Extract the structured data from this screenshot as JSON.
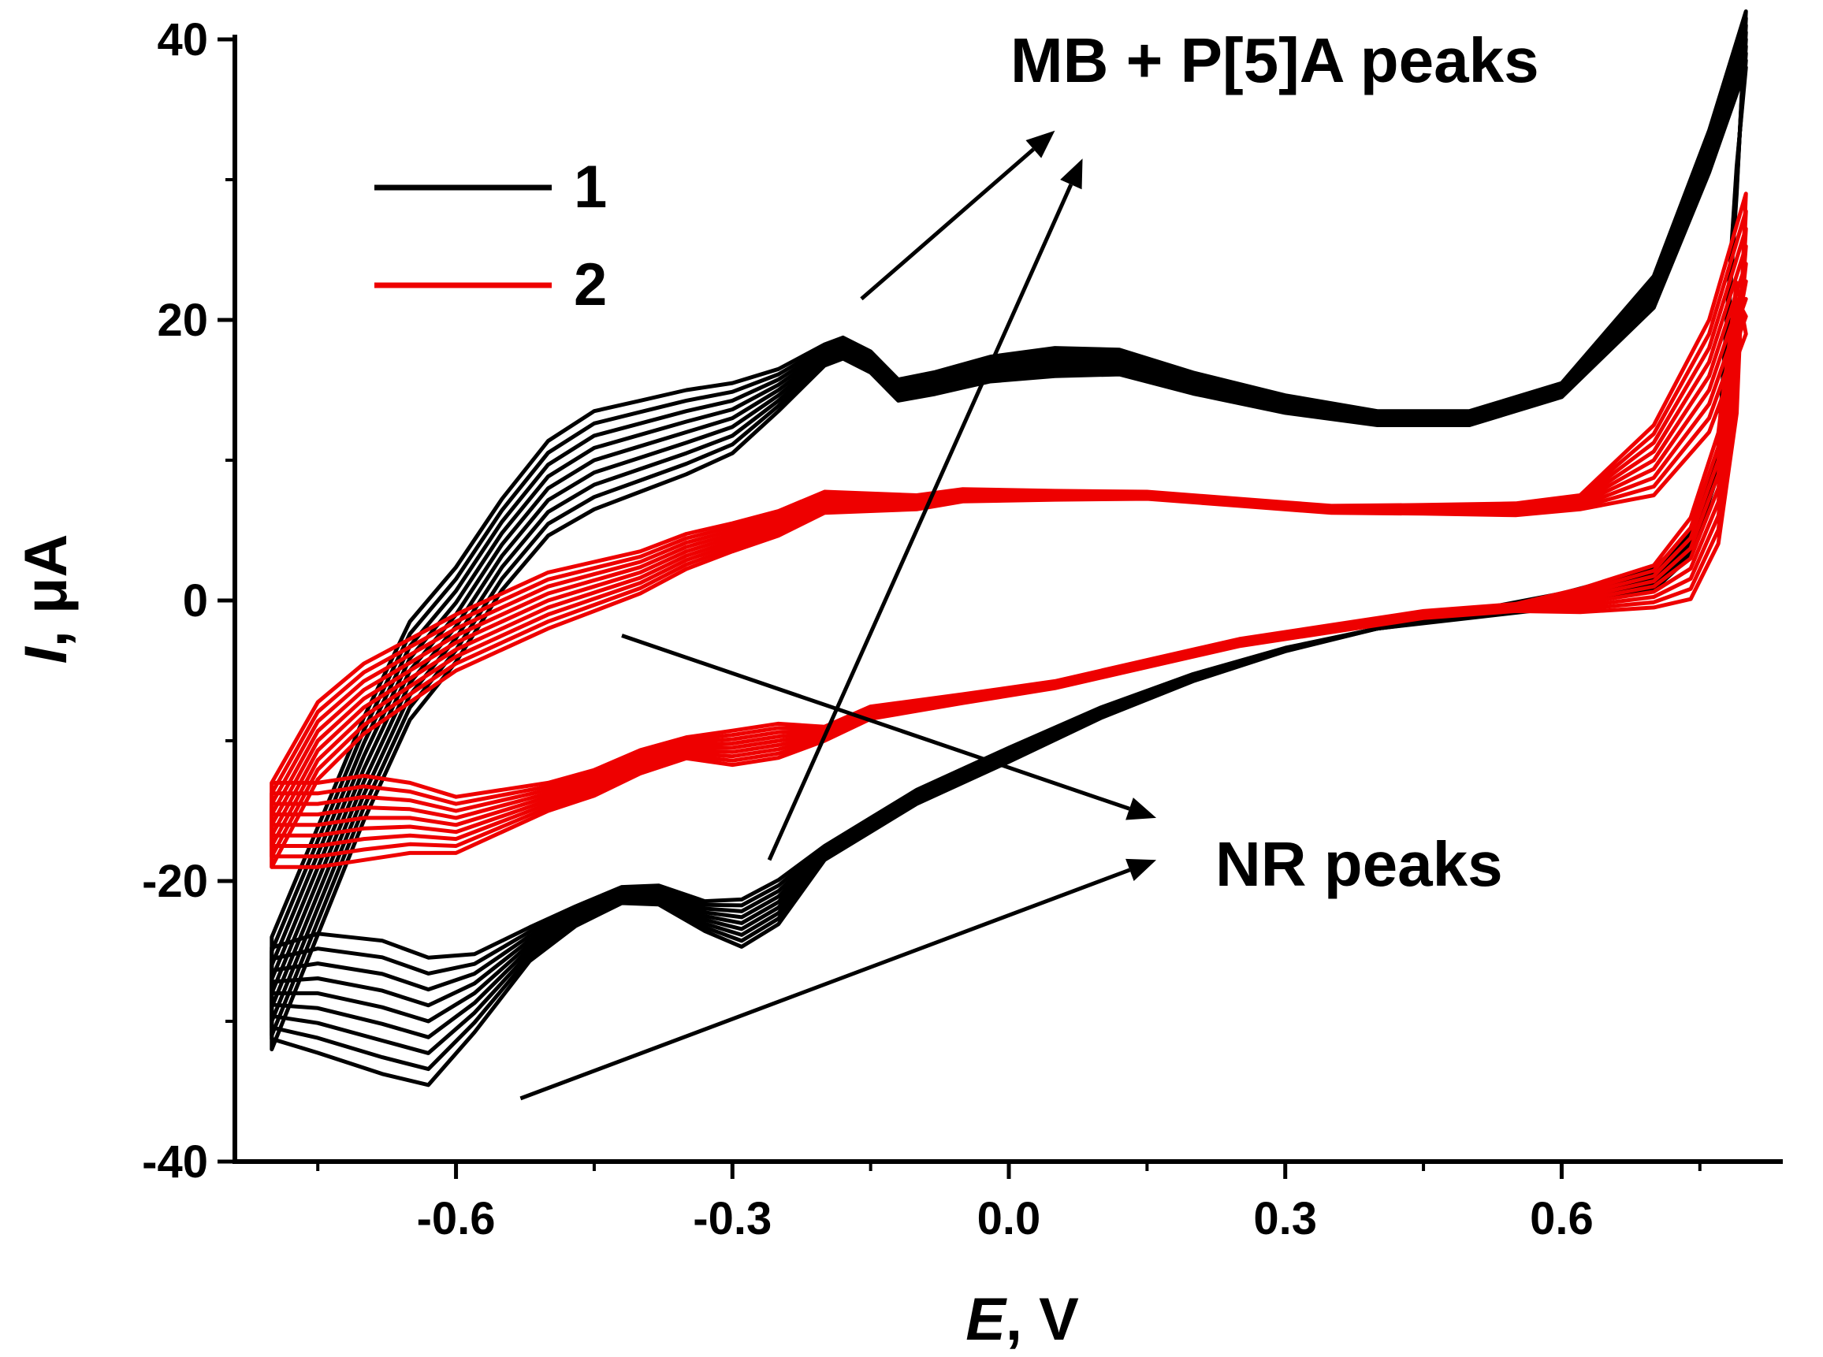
{
  "chart_data": {
    "type": "line",
    "title": "",
    "xlabel": {
      "symbol": "E",
      "unit": ", V"
    },
    "ylabel": {
      "symbol": "I",
      "unit": ", μA"
    },
    "xlim": [
      -0.84,
      0.84
    ],
    "ylim": [
      -40,
      40
    ],
    "x_ticks": [
      -0.6,
      -0.3,
      0.0,
      0.3,
      0.6
    ],
    "x_tick_labels": [
      "-0.6",
      "-0.3",
      "0.0",
      "0.3",
      "0.6"
    ],
    "y_ticks": [
      -40,
      -20,
      0,
      20,
      40
    ],
    "y_tick_labels": [
      "-40",
      "-20",
      "0",
      "20",
      "40"
    ],
    "grid": false,
    "legend": {
      "placement": "top-left",
      "entries": [
        {
          "label": "1",
          "color": "#000000"
        },
        {
          "label": "2",
          "color": "#ee0000"
        }
      ]
    },
    "annotations": [
      {
        "id": "mb",
        "text": "MB + P[5]A peaks"
      },
      {
        "id": "nr",
        "text": "NR peaks"
      }
    ],
    "arrows": [
      {
        "from": [
          -0.16,
          21.5
        ],
        "to": [
          0.05,
          33.5
        ]
      },
      {
        "from": [
          -0.26,
          -18.5
        ],
        "to": [
          0.08,
          31.5
        ]
      },
      {
        "from": [
          -0.42,
          -2.5
        ],
        "to": [
          0.16,
          -15.5
        ]
      },
      {
        "from": [
          -0.53,
          -35.5
        ],
        "to": [
          0.16,
          -18.5
        ]
      }
    ],
    "series": [
      {
        "name": "1",
        "color": "#000000",
        "cycles": 9,
        "forward_base": [
          [
            -0.8,
            -28
          ],
          [
            -0.75,
            -20
          ],
          [
            -0.7,
            -12
          ],
          [
            -0.65,
            -5
          ],
          [
            -0.6,
            -1
          ],
          [
            -0.55,
            4
          ],
          [
            -0.5,
            8
          ],
          [
            -0.45,
            10
          ],
          [
            -0.4,
            11
          ],
          [
            -0.35,
            12
          ],
          [
            -0.3,
            13
          ],
          [
            -0.25,
            15
          ],
          [
            -0.2,
            17.5
          ],
          [
            -0.18,
            18
          ],
          [
            -0.15,
            17
          ],
          [
            -0.12,
            15
          ],
          [
            -0.08,
            15.5
          ],
          [
            -0.02,
            16.5
          ],
          [
            0.05,
            17
          ],
          [
            0.12,
            17
          ],
          [
            0.2,
            15.5
          ],
          [
            0.3,
            14
          ],
          [
            0.4,
            13
          ],
          [
            0.5,
            13
          ],
          [
            0.6,
            15
          ],
          [
            0.7,
            22
          ],
          [
            0.76,
            32
          ],
          [
            0.8,
            40
          ]
        ],
        "forward_spread": [
          [
            -0.8,
            8
          ],
          [
            -0.65,
            7
          ],
          [
            -0.55,
            6.5
          ],
          [
            -0.45,
            7
          ],
          [
            -0.35,
            6
          ],
          [
            -0.3,
            5
          ],
          [
            -0.25,
            3
          ],
          [
            -0.2,
            1.5
          ],
          [
            -0.1,
            1.5
          ],
          [
            0.05,
            2
          ],
          [
            0.2,
            1.5
          ],
          [
            0.4,
            1
          ],
          [
            0.6,
            1
          ],
          [
            0.76,
            3
          ],
          [
            0.8,
            4
          ]
        ],
        "reverse_base": [
          [
            0.8,
            40
          ],
          [
            0.79,
            30
          ],
          [
            0.77,
            10
          ],
          [
            0.74,
            4
          ],
          [
            0.7,
            1.5
          ],
          [
            0.6,
            0
          ],
          [
            0.5,
            -1
          ],
          [
            0.4,
            -2
          ],
          [
            0.3,
            -3.5
          ],
          [
            0.2,
            -5.5
          ],
          [
            0.1,
            -8
          ],
          [
            0.0,
            -11
          ],
          [
            -0.1,
            -14
          ],
          [
            -0.15,
            -16
          ],
          [
            -0.2,
            -18
          ],
          [
            -0.25,
            -21.5
          ],
          [
            -0.29,
            -23
          ],
          [
            -0.33,
            -22.5
          ],
          [
            -0.38,
            -21
          ],
          [
            -0.42,
            -21
          ],
          [
            -0.47,
            -22.5
          ],
          [
            -0.52,
            -24.5
          ],
          [
            -0.58,
            -28
          ],
          [
            -0.63,
            -30
          ],
          [
            -0.68,
            -29
          ],
          [
            -0.75,
            -28
          ],
          [
            -0.8,
            -28
          ]
        ],
        "reverse_spread": [
          [
            0.8,
            2
          ],
          [
            0.4,
            0
          ],
          [
            0.0,
            1
          ],
          [
            -0.2,
            1
          ],
          [
            -0.27,
            4
          ],
          [
            -0.35,
            1.5
          ],
          [
            -0.45,
            1
          ],
          [
            -0.55,
            3
          ],
          [
            -0.62,
            9
          ],
          [
            -0.68,
            9.5
          ],
          [
            -0.75,
            8.5
          ],
          [
            -0.8,
            6.5
          ]
        ]
      },
      {
        "name": "2",
        "color": "#ee0000",
        "cycles": 9,
        "forward_base": [
          [
            -0.8,
            -16
          ],
          [
            -0.75,
            -10
          ],
          [
            -0.7,
            -7
          ],
          [
            -0.65,
            -5
          ],
          [
            -0.6,
            -3
          ],
          [
            -0.55,
            -1.5
          ],
          [
            -0.5,
            0
          ],
          [
            -0.45,
            1
          ],
          [
            -0.4,
            2
          ],
          [
            -0.35,
            3.5
          ],
          [
            -0.3,
            4.5
          ],
          [
            -0.25,
            5.5
          ],
          [
            -0.2,
            7
          ],
          [
            -0.15,
            7
          ],
          [
            -0.1,
            7
          ],
          [
            -0.05,
            7.5
          ],
          [
            0.05,
            7.5
          ],
          [
            0.15,
            7.5
          ],
          [
            0.25,
            7
          ],
          [
            0.35,
            6.5
          ],
          [
            0.45,
            6.5
          ],
          [
            0.55,
            6.5
          ],
          [
            0.62,
            7
          ],
          [
            0.7,
            10
          ],
          [
            0.76,
            16
          ],
          [
            0.8,
            24
          ]
        ],
        "forward_spread": [
          [
            -0.8,
            6
          ],
          [
            -0.7,
            5
          ],
          [
            -0.6,
            4
          ],
          [
            -0.5,
            4
          ],
          [
            -0.4,
            3
          ],
          [
            -0.3,
            2
          ],
          [
            -0.2,
            1.5
          ],
          [
            -0.1,
            1
          ],
          [
            0.1,
            0.5
          ],
          [
            0.4,
            0.5
          ],
          [
            0.62,
            1
          ],
          [
            0.76,
            8
          ],
          [
            0.8,
            10
          ]
        ],
        "reverse_base": [
          [
            0.8,
            24
          ],
          [
            0.79,
            18
          ],
          [
            0.77,
            8
          ],
          [
            0.74,
            3
          ],
          [
            0.7,
            1
          ],
          [
            0.62,
            0
          ],
          [
            0.55,
            -0.5
          ],
          [
            0.45,
            -1
          ],
          [
            0.35,
            -2
          ],
          [
            0.25,
            -3
          ],
          [
            0.15,
            -4.5
          ],
          [
            0.05,
            -6
          ],
          [
            -0.05,
            -7
          ],
          [
            -0.15,
            -8
          ],
          [
            -0.2,
            -9.5
          ],
          [
            -0.25,
            -10
          ],
          [
            -0.3,
            -10.5
          ],
          [
            -0.35,
            -10.5
          ],
          [
            -0.4,
            -11.5
          ],
          [
            -0.45,
            -13
          ],
          [
            -0.5,
            -14
          ],
          [
            -0.55,
            -15
          ],
          [
            -0.6,
            -16
          ],
          [
            -0.65,
            -15.5
          ],
          [
            -0.7,
            -15.5
          ],
          [
            -0.75,
            -16
          ],
          [
            -0.8,
            -16
          ]
        ],
        "reverse_spread": [
          [
            0.8,
            10
          ],
          [
            0.7,
            3
          ],
          [
            0.55,
            0.5
          ],
          [
            0.3,
            0.5
          ],
          [
            0.0,
            0.5
          ],
          [
            -0.2,
            1
          ],
          [
            -0.27,
            3
          ],
          [
            -0.35,
            1.5
          ],
          [
            -0.5,
            2
          ],
          [
            -0.6,
            4
          ],
          [
            -0.7,
            6
          ],
          [
            -0.8,
            6
          ]
        ]
      }
    ]
  }
}
